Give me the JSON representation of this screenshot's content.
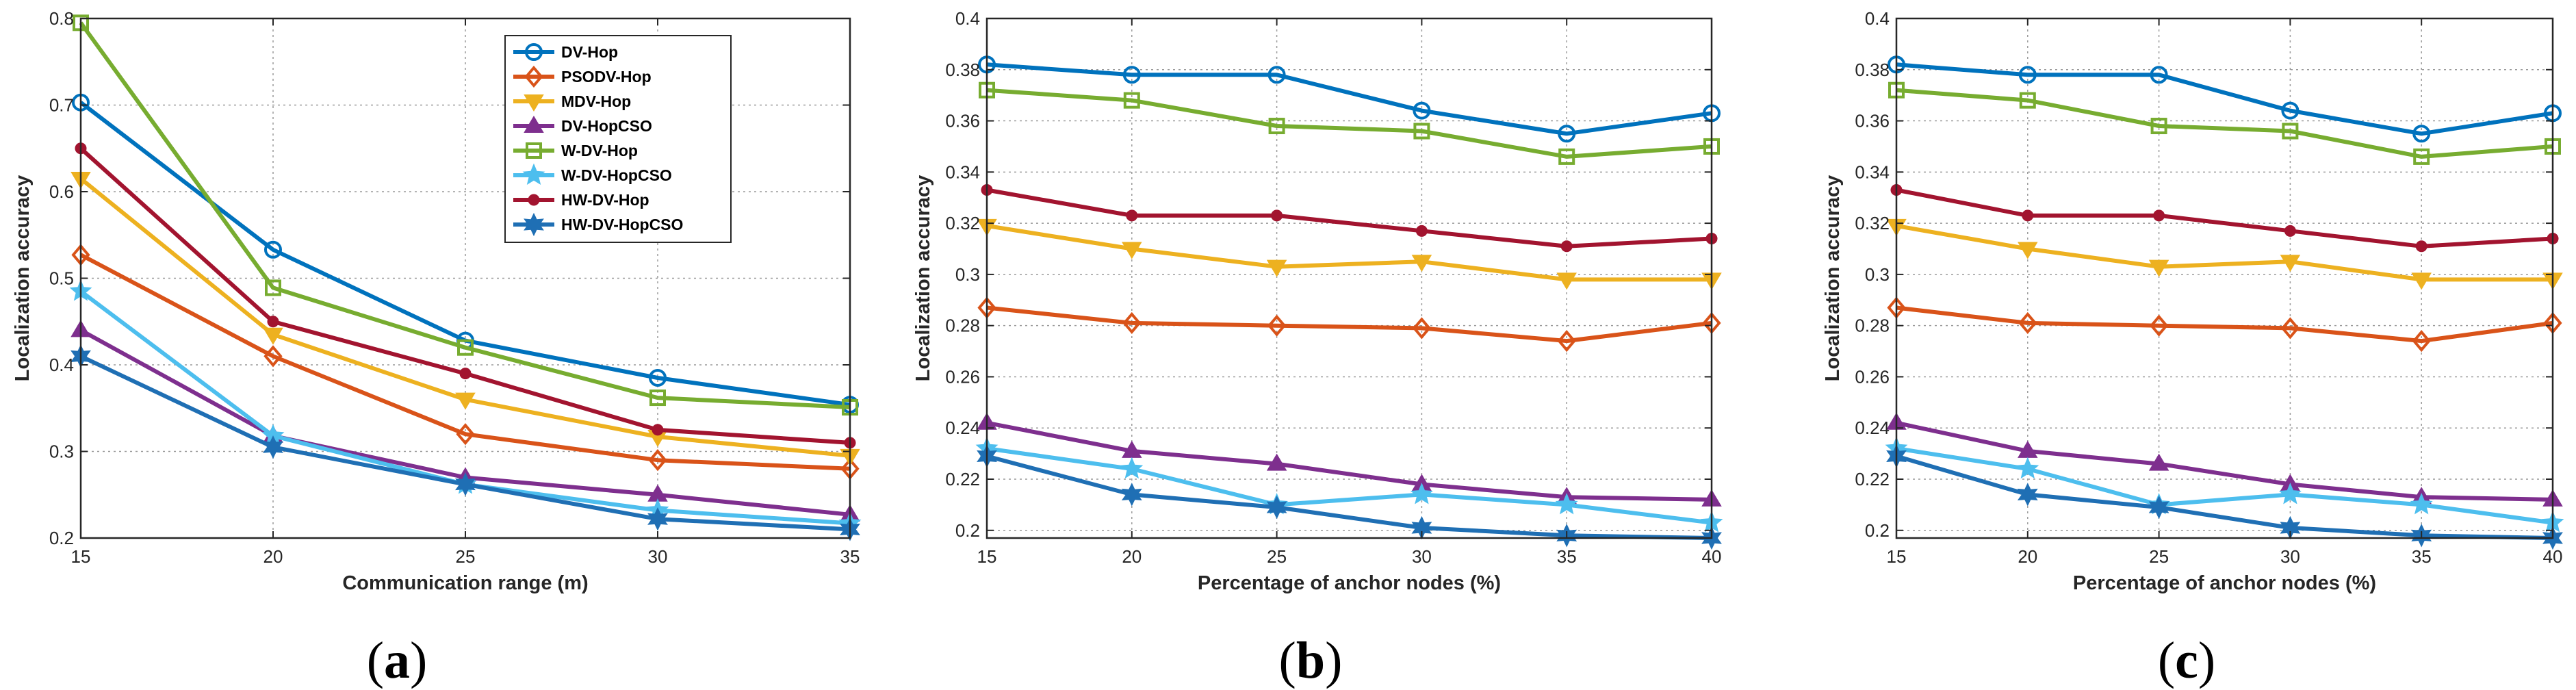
{
  "chart_data": [
    {
      "type": "line",
      "panel": "a",
      "panel_label": {
        "open": "(",
        "letter": "a",
        "close": ")"
      },
      "xlabel": "Communication range (m)",
      "ylabel": "Localization accuracy",
      "x": [
        15,
        20,
        25,
        30,
        35
      ],
      "xticks": [
        "15",
        "20",
        "25",
        "30",
        "35"
      ],
      "xlim": [
        15,
        35
      ],
      "ylim": [
        0.2,
        0.8
      ],
      "yticks": [
        "0.2",
        "0.3",
        "0.4",
        "0.5",
        "0.6",
        "0.7",
        "0.8"
      ],
      "ytick_values": [
        0.2,
        0.3,
        0.4,
        0.5,
        0.6,
        0.7,
        0.8
      ],
      "grid": true,
      "legend": "top-right",
      "series": [
        {
          "name": "DV-Hop",
          "color": "#0072BD",
          "marker": "circle",
          "values": [
            0.703,
            0.533,
            0.428,
            0.385,
            0.354
          ]
        },
        {
          "name": "PSODV-Hop",
          "color": "#D95319",
          "marker": "diamond",
          "values": [
            0.527,
            0.41,
            0.32,
            0.29,
            0.28
          ]
        },
        {
          "name": "MDV-Hop",
          "color": "#EDB120",
          "marker": "triangle-down",
          "values": [
            0.615,
            0.435,
            0.36,
            0.317,
            0.295
          ]
        },
        {
          "name": "DV-HopCSO",
          "color": "#7E2F8E",
          "marker": "triangle-up",
          "values": [
            0.44,
            0.318,
            0.27,
            0.25,
            0.227
          ]
        },
        {
          "name": "W-DV-Hop",
          "color": "#77AC30",
          "marker": "square",
          "values": [
            0.795,
            0.489,
            0.42,
            0.362,
            0.351
          ]
        },
        {
          "name": "W-DV-HopCSO",
          "color": "#4DBEEE",
          "marker": "star",
          "values": [
            0.485,
            0.318,
            0.262,
            0.232,
            0.217
          ]
        },
        {
          "name": "HW-DV-Hop",
          "color": "#A2142F",
          "marker": "dot",
          "values": [
            0.65,
            0.45,
            0.39,
            0.325,
            0.31
          ]
        },
        {
          "name": "HW-DV-HopCSO",
          "color": "#1F6FB4",
          "marker": "hexagram",
          "values": [
            0.41,
            0.305,
            0.262,
            0.222,
            0.21
          ]
        }
      ]
    },
    {
      "type": "line",
      "panel": "b",
      "panel_label": {
        "open": "(",
        "letter": "b",
        "close": ")"
      },
      "xlabel": "Percentage of anchor nodes (%)",
      "ylabel": "Localization accuracy",
      "x": [
        15,
        20,
        25,
        30,
        35,
        40
      ],
      "xticks": [
        "15",
        "20",
        "25",
        "30",
        "35",
        "40"
      ],
      "xlim": [
        15,
        40
      ],
      "ylim": [
        0.197,
        0.4
      ],
      "yticks": [
        "0.2",
        "0.22",
        "0.24",
        "0.26",
        "0.28",
        "0.3",
        "0.32",
        "0.34",
        "0.36",
        "0.38",
        "0.4"
      ],
      "ytick_values": [
        0.2,
        0.22,
        0.24,
        0.26,
        0.28,
        0.3,
        0.32,
        0.34,
        0.36,
        0.38,
        0.4
      ],
      "grid": true,
      "series": [
        {
          "name": "DV-Hop",
          "color": "#0072BD",
          "marker": "circle",
          "values": [
            0.382,
            0.378,
            0.378,
            0.364,
            0.355,
            0.363
          ]
        },
        {
          "name": "PSODV-Hop",
          "color": "#D95319",
          "marker": "diamond",
          "values": [
            0.287,
            0.281,
            0.28,
            0.279,
            0.274,
            0.281
          ]
        },
        {
          "name": "MDV-Hop",
          "color": "#EDB120",
          "marker": "triangle-down",
          "values": [
            0.319,
            0.31,
            0.303,
            0.305,
            0.298,
            0.298
          ]
        },
        {
          "name": "DV-HopCSO",
          "color": "#7E2F8E",
          "marker": "triangle-up",
          "values": [
            0.242,
            0.231,
            0.226,
            0.218,
            0.213,
            0.212
          ]
        },
        {
          "name": "W-DV-Hop",
          "color": "#77AC30",
          "marker": "square",
          "values": [
            0.372,
            0.368,
            0.358,
            0.356,
            0.346,
            0.35
          ]
        },
        {
          "name": "W-DV-HopCSO",
          "color": "#4DBEEE",
          "marker": "star",
          "values": [
            0.232,
            0.224,
            0.21,
            0.214,
            0.21,
            0.203
          ]
        },
        {
          "name": "HW-DV-Hop",
          "color": "#A2142F",
          "marker": "dot",
          "values": [
            0.333,
            0.323,
            0.323,
            0.317,
            0.311,
            0.314
          ]
        },
        {
          "name": "HW-DV-HopCSO",
          "color": "#1F6FB4",
          "marker": "hexagram",
          "values": [
            0.229,
            0.214,
            0.209,
            0.201,
            0.198,
            0.197
          ]
        }
      ]
    },
    {
      "type": "line",
      "panel": "c",
      "panel_label": {
        "open": "(",
        "letter": "c",
        "close": ")"
      },
      "xlabel": "Percentage of anchor nodes (%)",
      "ylabel": "Localization accuracy",
      "x": [
        15,
        20,
        25,
        30,
        35,
        40
      ],
      "xticks": [
        "15",
        "20",
        "25",
        "30",
        "35",
        "40"
      ],
      "xlim": [
        15,
        40
      ],
      "ylim": [
        0.197,
        0.4
      ],
      "yticks": [
        "0.2",
        "0.22",
        "0.24",
        "0.26",
        "0.28",
        "0.3",
        "0.32",
        "0.34",
        "0.36",
        "0.38",
        "0.4"
      ],
      "ytick_values": [
        0.2,
        0.22,
        0.24,
        0.26,
        0.28,
        0.3,
        0.32,
        0.34,
        0.36,
        0.38,
        0.4
      ],
      "grid": true,
      "series": [
        {
          "name": "DV-Hop",
          "color": "#0072BD",
          "marker": "circle",
          "values": [
            0.382,
            0.378,
            0.378,
            0.364,
            0.355,
            0.363
          ]
        },
        {
          "name": "PSODV-Hop",
          "color": "#D95319",
          "marker": "diamond",
          "values": [
            0.287,
            0.281,
            0.28,
            0.279,
            0.274,
            0.281
          ]
        },
        {
          "name": "MDV-Hop",
          "color": "#EDB120",
          "marker": "triangle-down",
          "values": [
            0.319,
            0.31,
            0.303,
            0.305,
            0.298,
            0.298
          ]
        },
        {
          "name": "DV-HopCSO",
          "color": "#7E2F8E",
          "marker": "triangle-up",
          "values": [
            0.242,
            0.231,
            0.226,
            0.218,
            0.213,
            0.212
          ]
        },
        {
          "name": "W-DV-Hop",
          "color": "#77AC30",
          "marker": "square",
          "values": [
            0.372,
            0.368,
            0.358,
            0.356,
            0.346,
            0.35
          ]
        },
        {
          "name": "W-DV-HopCSO",
          "color": "#4DBEEE",
          "marker": "star",
          "values": [
            0.232,
            0.224,
            0.21,
            0.214,
            0.21,
            0.203
          ]
        },
        {
          "name": "HW-DV-Hop",
          "color": "#A2142F",
          "marker": "dot",
          "values": [
            0.333,
            0.323,
            0.323,
            0.317,
            0.311,
            0.314
          ]
        },
        {
          "name": "HW-DV-HopCSO",
          "color": "#1F6FB4",
          "marker": "hexagram",
          "values": [
            0.229,
            0.214,
            0.209,
            0.201,
            0.198,
            0.197
          ]
        }
      ]
    }
  ]
}
